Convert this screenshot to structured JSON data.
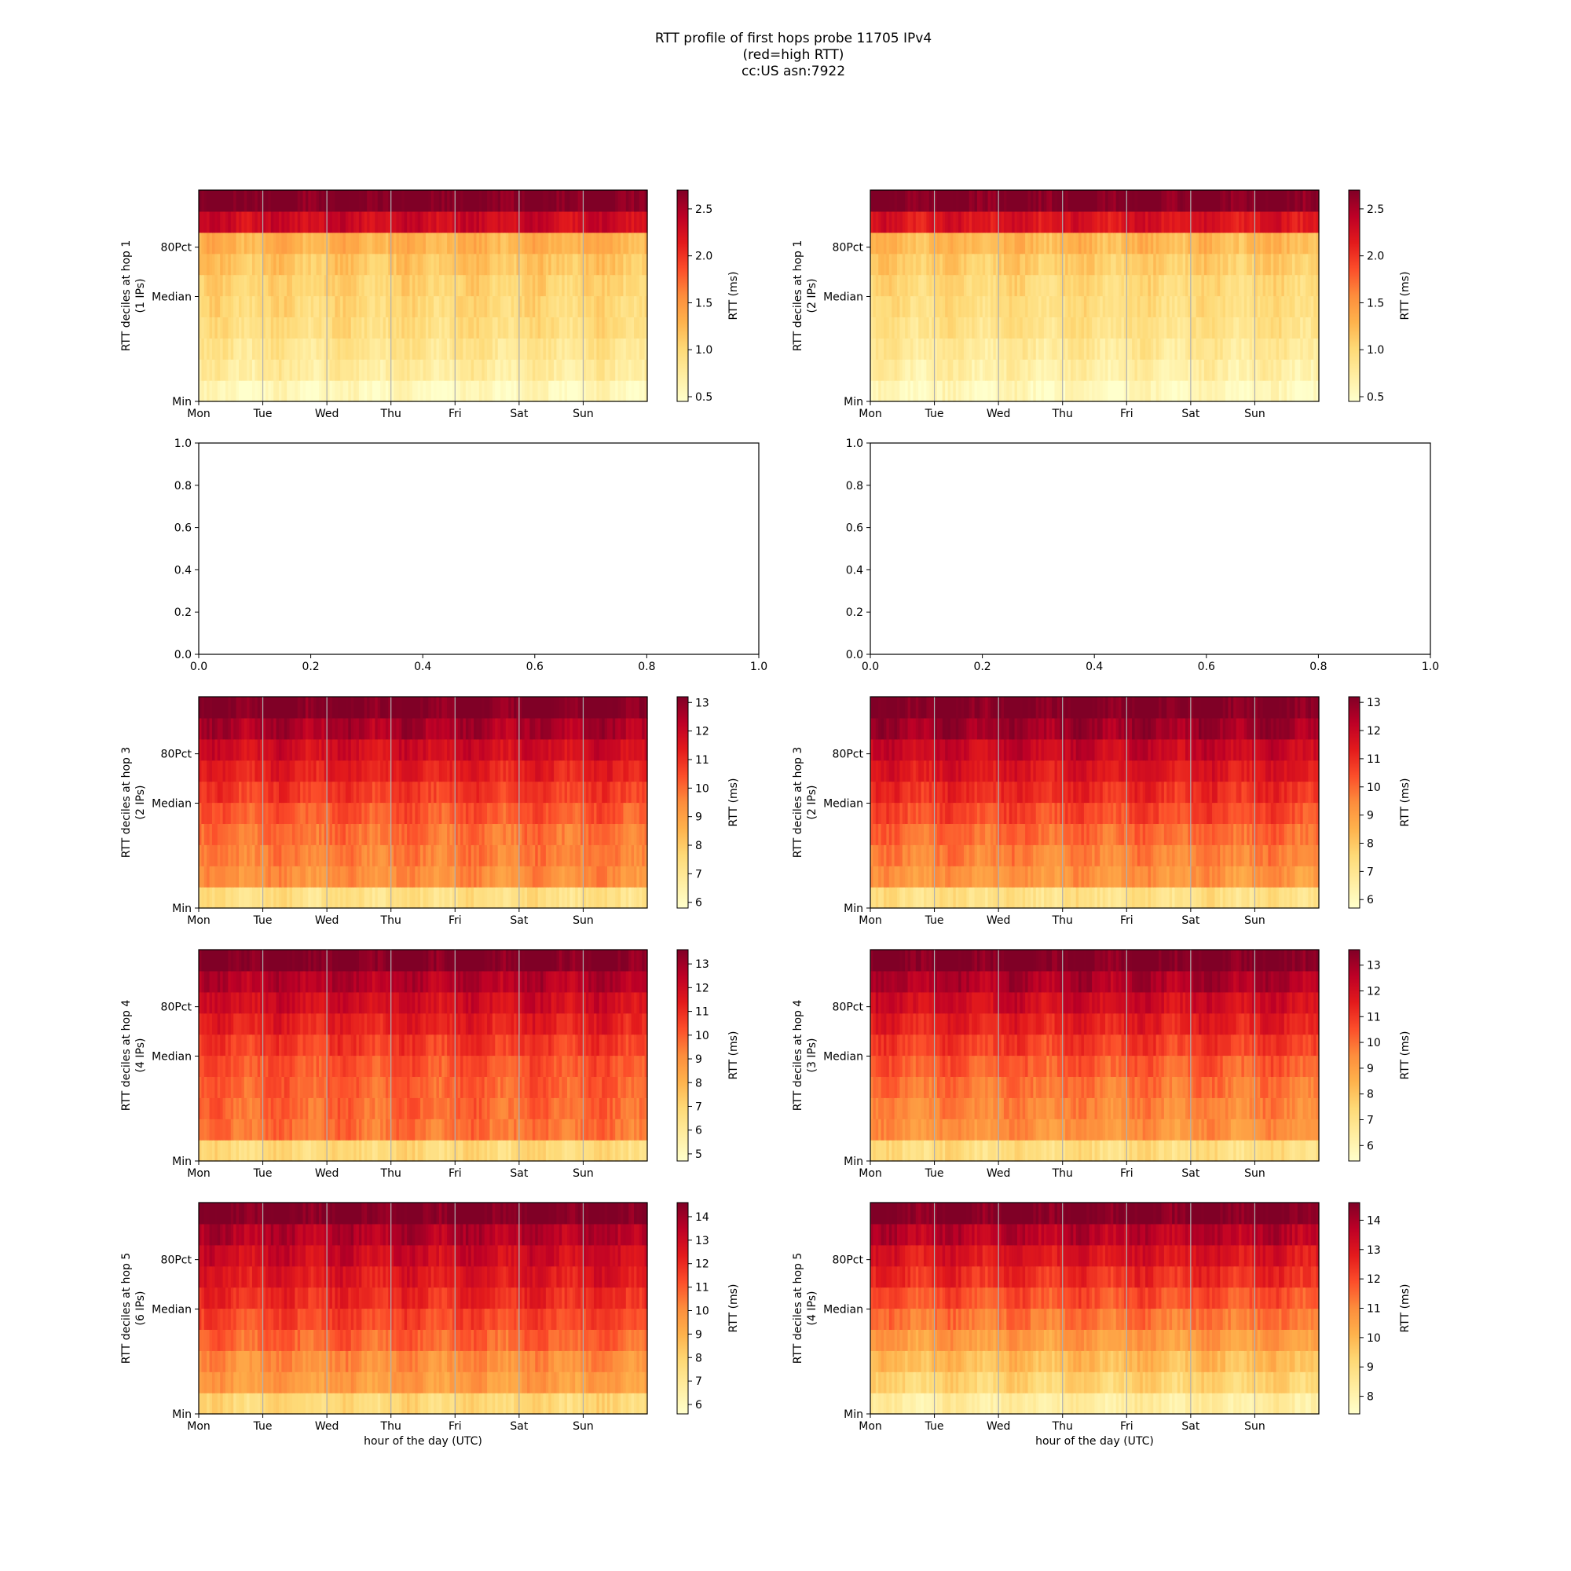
{
  "figure": {
    "title_lines": [
      "RTT profile of first hops probe 11705 IPv4",
      "(red=high RTT)",
      "cc:US asn:7922"
    ]
  },
  "chart_data": [
    {
      "type": "heatmap",
      "panel": "hop1-left",
      "ylabel_lines": [
        "RTT deciles at hop 1",
        "(1 IPs)"
      ],
      "ytick_labels": [
        "Min",
        "Median",
        "80Pct"
      ],
      "xtick_labels": [
        "Mon",
        "Tue",
        "Wed",
        "Thu",
        "Fri",
        "Sat",
        "Sun"
      ],
      "xlabel": "",
      "colorbar": {
        "label": "RTT (ms)",
        "range": [
          0.45,
          2.7
        ],
        "ticks": [
          0.5,
          1.0,
          1.5,
          2.0,
          2.5
        ]
      },
      "decile_profile": [
        0.55,
        0.75,
        0.85,
        0.95,
        1.0,
        1.05,
        1.15,
        1.3,
        2.3,
        2.7
      ],
      "vertical_grid": true
    },
    {
      "type": "heatmap",
      "panel": "hop1-right",
      "ylabel_lines": [
        "RTT deciles at hop 1",
        "(2 IPs)"
      ],
      "ytick_labels": [
        "Min",
        "Median",
        "80Pct"
      ],
      "xtick_labels": [
        "Mon",
        "Tue",
        "Wed",
        "Thu",
        "Fri",
        "Sat",
        "Sun"
      ],
      "xlabel": "",
      "colorbar": {
        "label": "RTT (ms)",
        "range": [
          0.45,
          2.7
        ],
        "ticks": [
          0.5,
          1.0,
          1.5,
          2.0,
          2.5
        ]
      },
      "decile_profile": [
        0.55,
        0.7,
        0.8,
        0.9,
        0.95,
        1.0,
        1.1,
        1.25,
        2.2,
        2.7
      ],
      "vertical_grid": true
    },
    {
      "type": "empty",
      "panel": "hop2-left",
      "xlim": [
        0.0,
        1.0
      ],
      "ylim": [
        0.0,
        1.0
      ],
      "xtick_labels": [
        "0.0",
        "0.2",
        "0.4",
        "0.6",
        "0.8",
        "1.0"
      ],
      "ytick_labels": [
        "0.0",
        "0.2",
        "0.4",
        "0.6",
        "0.8",
        "1.0"
      ]
    },
    {
      "type": "empty",
      "panel": "hop2-right",
      "xlim": [
        0.0,
        1.0
      ],
      "ylim": [
        0.0,
        1.0
      ],
      "xtick_labels": [
        "0.0",
        "0.2",
        "0.4",
        "0.6",
        "0.8",
        "1.0"
      ],
      "ytick_labels": [
        "0.0",
        "0.2",
        "0.4",
        "0.6",
        "0.8",
        "1.0"
      ]
    },
    {
      "type": "heatmap",
      "panel": "hop3-left",
      "ylabel_lines": [
        "RTT deciles at hop 3",
        "(2 IPs)"
      ],
      "ytick_labels": [
        "Min",
        "Median",
        "80Pct"
      ],
      "xtick_labels": [
        "Mon",
        "Tue",
        "Wed",
        "Thu",
        "Fri",
        "Sat",
        "Sun"
      ],
      "xlabel": "",
      "colorbar": {
        "label": "RTT (ms)",
        "range": [
          5.8,
          13.2
        ],
        "ticks": [
          6,
          7,
          8,
          9,
          10,
          11,
          12,
          13
        ]
      },
      "decile_profile": [
        7.3,
        9.4,
        9.7,
        9.9,
        10.3,
        10.8,
        11.3,
        11.8,
        12.5,
        13.2
      ],
      "vertical_grid": true
    },
    {
      "type": "heatmap",
      "panel": "hop3-right",
      "ylabel_lines": [
        "RTT deciles at hop 3",
        "(2 IPs)"
      ],
      "ytick_labels": [
        "Min",
        "Median",
        "80Pct"
      ],
      "xtick_labels": [
        "Mon",
        "Tue",
        "Wed",
        "Thu",
        "Fri",
        "Sat",
        "Sun"
      ],
      "xlabel": "",
      "colorbar": {
        "label": "RTT (ms)",
        "range": [
          5.7,
          13.2
        ],
        "ticks": [
          6,
          7,
          8,
          9,
          10,
          11,
          12,
          13
        ]
      },
      "decile_profile": [
        7.2,
        9.2,
        9.6,
        10.0,
        10.5,
        11.0,
        11.5,
        12.0,
        12.7,
        13.2
      ],
      "vertical_grid": true
    },
    {
      "type": "heatmap",
      "panel": "hop4-left",
      "ylabel_lines": [
        "RTT deciles at hop 4",
        "(4 IPs)"
      ],
      "ytick_labels": [
        "Min",
        "Median",
        "80Pct"
      ],
      "xtick_labels": [
        "Mon",
        "Tue",
        "Wed",
        "Thu",
        "Fri",
        "Sat",
        "Sun"
      ],
      "xlabel": "",
      "colorbar": {
        "label": "RTT (ms)",
        "range": [
          4.7,
          13.6
        ],
        "ticks": [
          5,
          6,
          7,
          8,
          9,
          10,
          11,
          12,
          13
        ]
      },
      "decile_profile": [
        6.8,
        9.6,
        9.8,
        10.0,
        10.2,
        10.7,
        11.3,
        11.9,
        12.6,
        13.6
      ],
      "vertical_grid": true
    },
    {
      "type": "heatmap",
      "panel": "hop4-right",
      "ylabel_lines": [
        "RTT deciles at hop 4",
        "(3 IPs)"
      ],
      "ytick_labels": [
        "Min",
        "Median",
        "80Pct"
      ],
      "xtick_labels": [
        "Mon",
        "Tue",
        "Wed",
        "Thu",
        "Fri",
        "Sat",
        "Sun"
      ],
      "xlabel": "",
      "colorbar": {
        "label": "RTT (ms)",
        "range": [
          5.4,
          13.6
        ],
        "ticks": [
          6,
          7,
          8,
          9,
          10,
          11,
          12,
          13
        ]
      },
      "decile_profile": [
        7.2,
        9.3,
        9.6,
        9.9,
        10.3,
        10.9,
        11.5,
        12.1,
        12.8,
        13.6
      ],
      "vertical_grid": true
    },
    {
      "type": "heatmap",
      "panel": "hop5-left",
      "ylabel_lines": [
        "RTT deciles at hop 5",
        "(6 IPs)"
      ],
      "ytick_labels": [
        "Min",
        "Median",
        "80Pct"
      ],
      "xtick_labels": [
        "Mon",
        "Tue",
        "Wed",
        "Thu",
        "Fri",
        "Sat",
        "Sun"
      ],
      "xlabel": "hour of the day (UTC)",
      "colorbar": {
        "label": "RTT (ms)",
        "range": [
          5.6,
          14.6
        ],
        "ticks": [
          6,
          7,
          8,
          9,
          10,
          11,
          12,
          13,
          14
        ]
      },
      "decile_profile": [
        7.8,
        9.6,
        10.0,
        10.8,
        11.4,
        12.0,
        12.5,
        13.0,
        13.6,
        14.6
      ],
      "vertical_grid": true
    },
    {
      "type": "heatmap",
      "panel": "hop5-right",
      "ylabel_lines": [
        "RTT deciles at hop 5",
        "(4 IPs)"
      ],
      "ytick_labels": [
        "Min",
        "Median",
        "80Pct"
      ],
      "xtick_labels": [
        "Mon",
        "Tue",
        "Wed",
        "Thu",
        "Fri",
        "Sat",
        "Sun"
      ],
      "xlabel": "hour of the day (UTC)",
      "colorbar": {
        "label": "RTT (ms)",
        "range": [
          7.4,
          14.6
        ],
        "ticks": [
          8,
          9,
          10,
          11,
          12,
          13,
          14
        ]
      },
      "decile_profile": [
        8.3,
        9.3,
        9.9,
        10.6,
        11.3,
        11.9,
        12.5,
        13.0,
        13.7,
        14.6
      ],
      "vertical_grid": true
    }
  ]
}
